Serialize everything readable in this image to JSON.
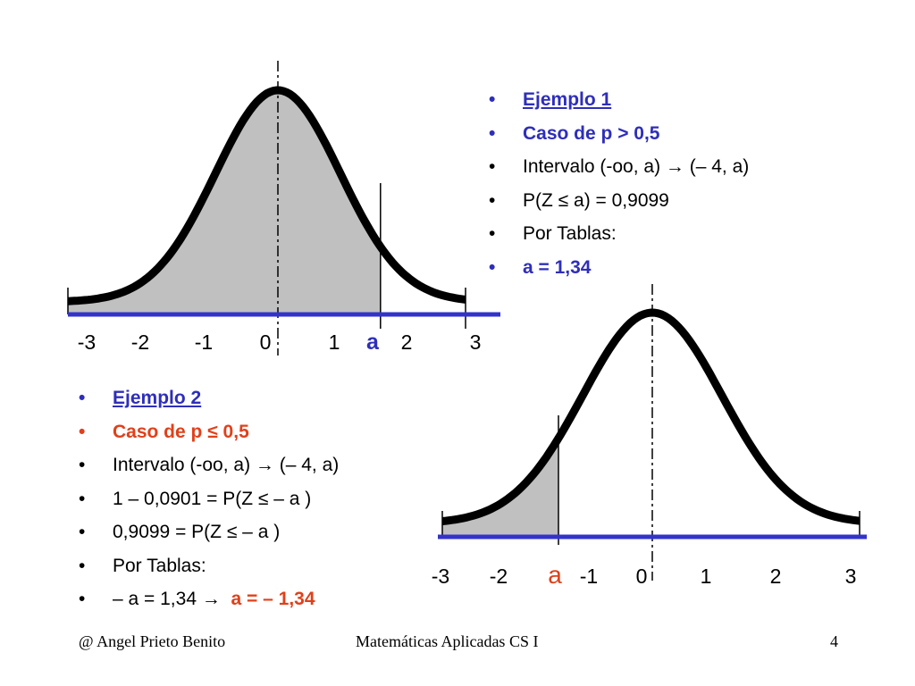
{
  "example1": {
    "bullets": [
      "Ejemplo 1",
      "Caso de p > 0,5",
      "Intervalo (-oo, a) → (– 4, a)",
      "P(Z ≤ a) = 0,9099",
      "Por Tablas:",
      "a = 1,34"
    ],
    "ticks": [
      "-3",
      "-2",
      "-1",
      "0",
      "1",
      "a",
      "2",
      "3"
    ],
    "a_value": 1.34
  },
  "example2": {
    "bullets": [
      "Ejemplo 2",
      "Caso de p ≤ 0,5",
      "Intervalo (-oo, a) → (– 4, a)",
      "1 – 0,0901 = P(Z ≤ – a )",
      "0,9099 = P(Z ≤ – a )",
      "Por Tablas:"
    ],
    "last_bullet_prefix": "– a  = 1,34 →",
    "last_bullet_result": "a = – 1,34",
    "ticks": [
      "-3",
      "-2",
      "a",
      "-1",
      "0",
      "1",
      "2",
      "3"
    ],
    "a_value": -1.34
  },
  "footer": {
    "author": "@   Angel Prieto Benito",
    "course": "Matemáticas Aplicadas CS I",
    "page": "4"
  },
  "colors": {
    "axis": "#3333cc",
    "shade": "#c0c0c0",
    "blue_text": "#2e2ebb",
    "red_text": "#e0401a"
  }
}
